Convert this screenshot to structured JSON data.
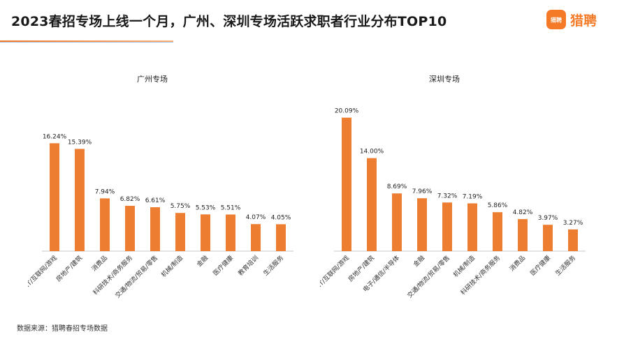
{
  "header": {
    "title": "2023春招专场上线一个月，广州、深圳专场活跃求职者行业分布TOP10",
    "logo_glyph": "猎聘",
    "logo_text": "猎聘"
  },
  "colors": {
    "accent": "#F47A27",
    "bar": "#ED7D31",
    "axis": "#C8C8C8"
  },
  "footnote": "数据来源：猎聘春招专场数据",
  "chart_data": [
    {
      "type": "bar",
      "title": "广州专场",
      "categories": [
        "IT/互联网/游戏",
        "房地产/建筑",
        "消费品",
        "科研技术/商务服务",
        "交通/物流/贸易/零售",
        "机械/制造",
        "金融",
        "医疗健康",
        "教育培训",
        "生活服务"
      ],
      "values": [
        16.24,
        15.39,
        7.94,
        6.82,
        6.61,
        5.75,
        5.53,
        5.51,
        4.07,
        4.05
      ],
      "labels": [
        "16.24%",
        "15.39%",
        "7.94%",
        "6.82%",
        "6.61%",
        "5.75%",
        "5.53%",
        "5.51%",
        "4.07%",
        "4.05%"
      ],
      "ylim": [
        0,
        21
      ],
      "grid": false
    },
    {
      "type": "bar",
      "title": "深圳专场",
      "categories": [
        "IT/互联网/游戏",
        "房地产/建筑",
        "电子/通信/半导体",
        "金融",
        "交通/物流/贸易/零售",
        "机械/制造",
        "科研技术/商务服务",
        "消费品",
        "医疗健康",
        "生活服务"
      ],
      "values": [
        20.09,
        14.0,
        8.69,
        7.96,
        7.32,
        7.19,
        5.86,
        4.82,
        3.97,
        3.27
      ],
      "labels": [
        "20.09%",
        "14.00%",
        "8.69%",
        "7.96%",
        "7.32%",
        "7.19%",
        "5.86%",
        "4.82%",
        "3.97%",
        "3.27%"
      ],
      "ylim": [
        0,
        21
      ],
      "grid": false
    }
  ]
}
